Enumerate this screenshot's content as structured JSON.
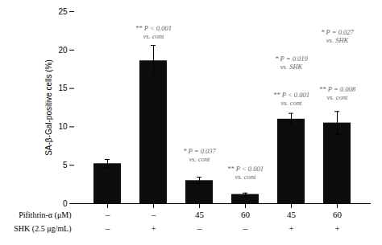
{
  "chart_data": {
    "type": "bar",
    "categories": [
      [
        "–",
        "–"
      ],
      [
        "–",
        "+"
      ],
      [
        "45",
        "–"
      ],
      [
        "60",
        "–"
      ],
      [
        "45",
        "+"
      ],
      [
        "60",
        "+"
      ]
    ],
    "category_rows": [
      "Pifithrin-α (μM)",
      "SHK (2.5 μg/mL)"
    ],
    "values": [
      5.2,
      18.6,
      3.0,
      1.2,
      11.0,
      10.5
    ],
    "errors": [
      0.55,
      2.0,
      0.45,
      0.18,
      0.75,
      1.5
    ],
    "color": "#0d0d0d",
    "ylabel": "SA-β-Gal-positive cells (%)",
    "ylim": [
      0,
      25
    ],
    "yticks": [
      0,
      5,
      10,
      15,
      20,
      25
    ],
    "grid": false,
    "annotations": [
      {
        "x": 1,
        "y": 21.5,
        "text": "** P < 0.001\nvs. cont",
        "color": "#666666"
      },
      {
        "x": 2,
        "y": 5.5,
        "text": "* P = 0.037\nvs. cont",
        "color": "#666666"
      },
      {
        "x": 3,
        "y": 3.2,
        "text": "** P < 0.001\nvs. cont",
        "color": "#666666"
      },
      {
        "x": 4,
        "y": 12.8,
        "text": "** P < 0.001\nvs. cont",
        "color": "#666666"
      },
      {
        "x": 4,
        "y": 17.5,
        "text": "* P = 0.019\nvs. SHK",
        "color": "#666666"
      },
      {
        "x": 5,
        "y": 13.5,
        "text": "** P = 0.008\nvs. cont",
        "color": "#666666"
      },
      {
        "x": 5,
        "y": 21.0,
        "text": "* P = 0.027\nvs. SHK",
        "color": "#666666"
      }
    ]
  }
}
